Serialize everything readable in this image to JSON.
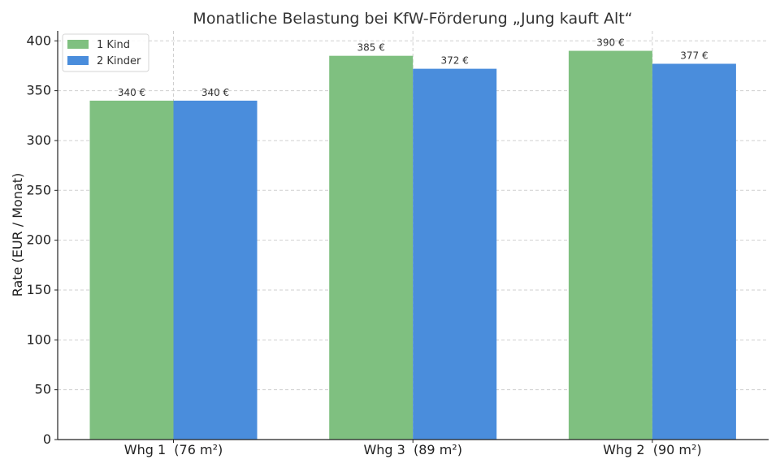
{
  "chart_data": {
    "type": "bar",
    "title": "Monatliche Belastung bei KfW-Förderung „Jung kauft Alt“",
    "xlabel": "",
    "ylabel": "Rate (EUR / Monat)",
    "ylim": [
      0,
      410
    ],
    "yticks": [
      0,
      50,
      100,
      150,
      200,
      250,
      300,
      350,
      400
    ],
    "categories": [
      "Whg 1  (76 m²)",
      "Whg 3  (89 m²)",
      "Whg 2  (90 m²)"
    ],
    "series": [
      {
        "name": "1 Kind",
        "color": "#7fc080",
        "values": [
          340,
          385,
          390
        ],
        "labels": [
          "340 €",
          "385 €",
          "390 €"
        ]
      },
      {
        "name": "2 Kinder",
        "color": "#4a8ddc",
        "values": [
          340,
          372,
          377
        ],
        "labels": [
          "340 €",
          "372 €",
          "377 €"
        ]
      }
    ],
    "grid": true,
    "legend_position": "top-left"
  }
}
